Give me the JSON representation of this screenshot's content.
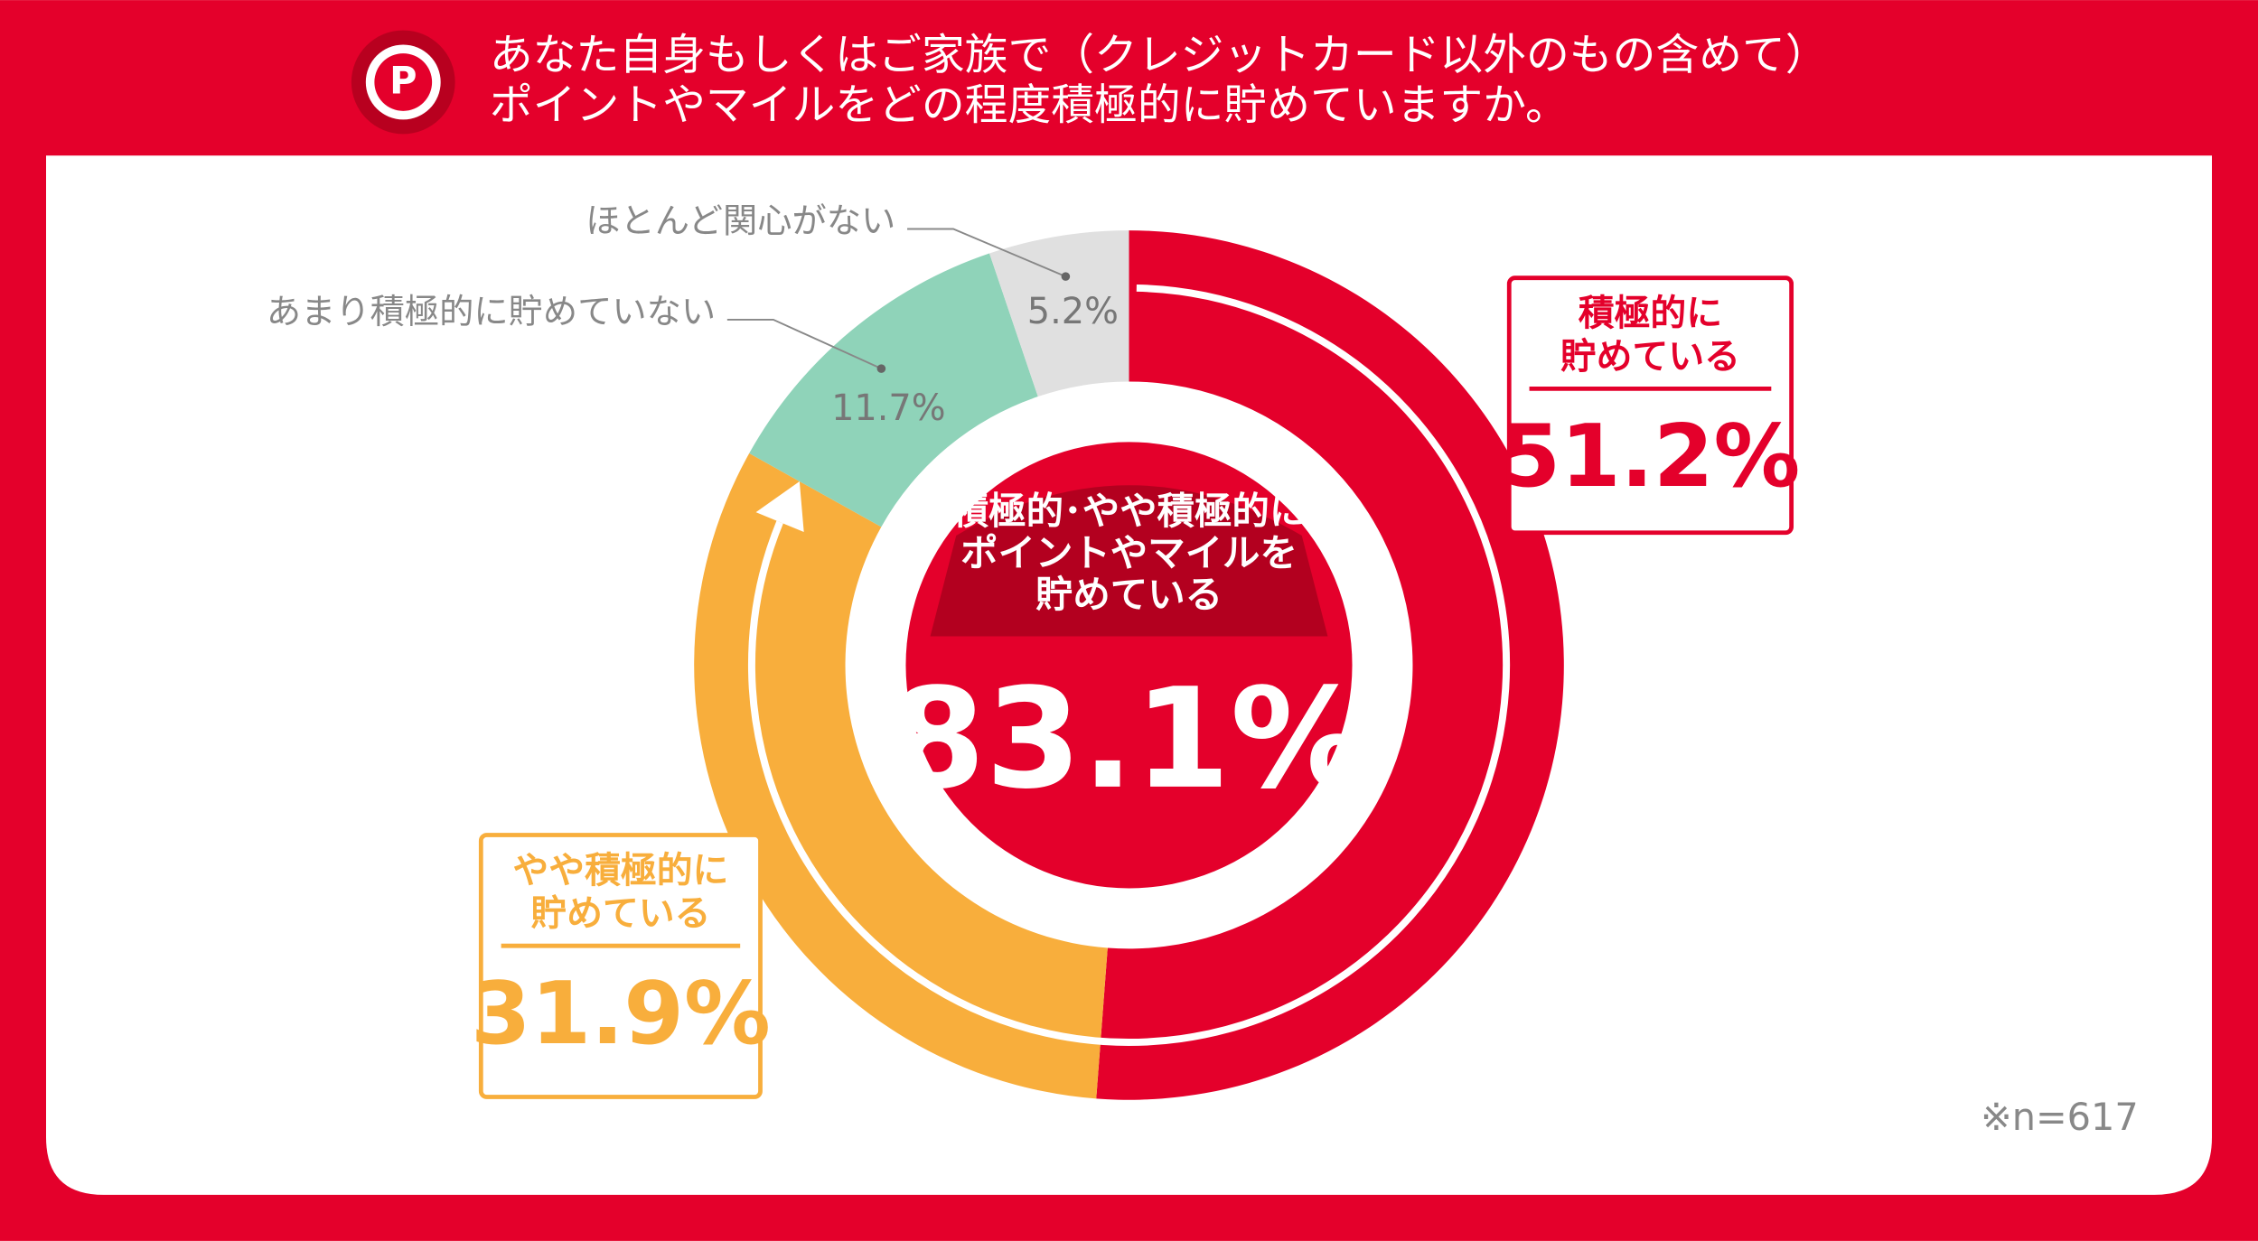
{
  "chart_data": {
    "type": "donut",
    "title": "あなた自身もしくはご家族で（クレジットカード以外のもの含めて）\nポイントやマイルをどの程度積極的に貯めていますか。",
    "categories": [
      "積極的に\n貯めている",
      "やや積極的に\n貯めている",
      "あまり積極的に貯めていない",
      "ほとんど関心がない"
    ],
    "values": [
      51.2,
      31.9,
      11.7,
      5.2
    ],
    "value_labels": [
      "51.2%",
      "31.9%",
      "11.7%",
      "5.2%"
    ],
    "colors": [
      "#e4002b",
      "#f8ae3c",
      "#8fd3b9",
      "#e0e0e0"
    ],
    "center_label": "積極的･やや積極的に\nポイントやマイルを\n貯めている",
    "center_value": 83.1,
    "center_value_label": "83.1%",
    "note": "※n=617"
  }
}
